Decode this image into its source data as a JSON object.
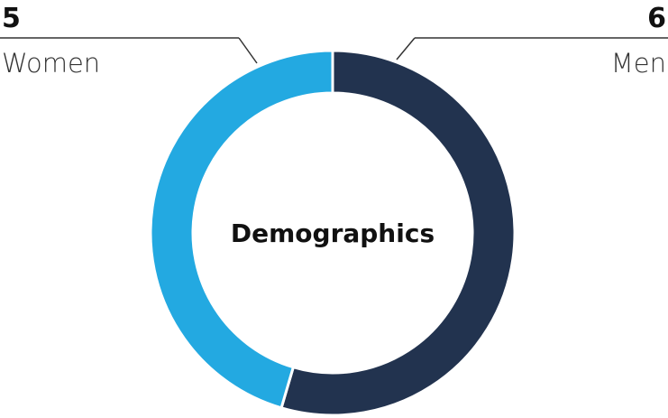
{
  "chart_data": {
    "type": "pie",
    "donut": true,
    "title": "Demographics",
    "series": [
      {
        "name": "Men",
        "value": 6,
        "color": "#22334f"
      },
      {
        "name": "Women",
        "value": 5,
        "color": "#23a9e1"
      }
    ],
    "start_angle": "top",
    "direction": "clockwise"
  }
}
